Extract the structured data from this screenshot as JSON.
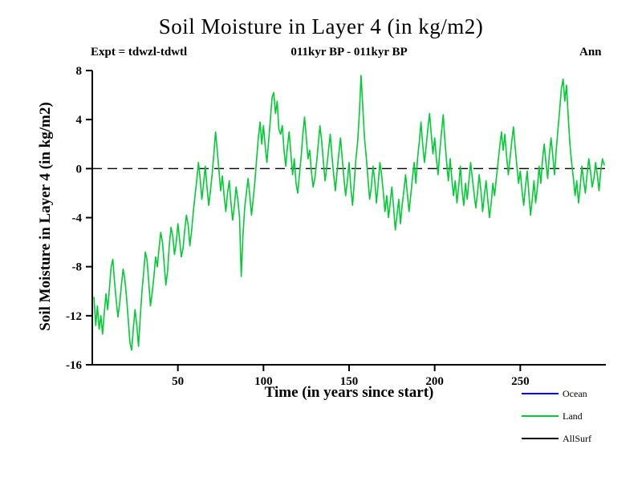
{
  "page": {
    "title": "Soil Moisture in Layer 4 (in kg/m2)",
    "expt_label": "Expt = tdwzl-tdwtl",
    "period_label": "011kyr BP - 011kyr BP",
    "season_label": "Ann",
    "background": "#ffffff"
  },
  "chart_data": {
    "type": "line",
    "title": "Soil Moisture in Layer 4 (in kg/m2)",
    "xlabel": "Time (in years since start)",
    "ylabel": "Soil Moisture in Layer 4 (in kg/m2)",
    "xlim": [
      0,
      300
    ],
    "ylim": [
      -16,
      8
    ],
    "x_ticks": [
      50,
      100,
      150,
      200,
      250
    ],
    "y_ticks": [
      -16,
      -12,
      -8,
      -4,
      0,
      4,
      8
    ],
    "grid": "off",
    "zero_line": {
      "y": 0,
      "style": "dashed",
      "color": "#000000"
    },
    "x_start": 1,
    "x_step": 1,
    "legend_position": "bottom-right",
    "series": [
      {
        "name": "Ocean",
        "color": "#0000cc",
        "values": []
      },
      {
        "name": "Land",
        "color": "#00cc33",
        "values": [
          -10.5,
          -12.8,
          -11.2,
          -13.1,
          -12.0,
          -13.5,
          -11.8,
          -10.2,
          -11.5,
          -9.8,
          -8.0,
          -7.4,
          -9.2,
          -10.8,
          -12.1,
          -11.0,
          -9.5,
          -8.2,
          -9.0,
          -10.5,
          -12.3,
          -14.2,
          -14.8,
          -13.0,
          -11.5,
          -12.8,
          -14.5,
          -12.2,
          -10.0,
          -8.5,
          -6.8,
          -7.5,
          -9.3,
          -11.2,
          -10.1,
          -8.8,
          -7.2,
          -8.0,
          -6.5,
          -5.2,
          -6.0,
          -7.8,
          -9.5,
          -8.3,
          -6.2,
          -4.8,
          -5.5,
          -7.0,
          -6.1,
          -4.5,
          -5.8,
          -7.2,
          -6.5,
          -5.0,
          -3.8,
          -4.6,
          -6.3,
          -5.1,
          -3.5,
          -2.2,
          -1.0,
          0.5,
          -0.8,
          -2.5,
          -1.2,
          0.2,
          -1.5,
          -3.0,
          -1.8,
          -0.5,
          1.2,
          3.0,
          1.5,
          -0.2,
          -1.8,
          -0.6,
          -2.2,
          -3.5,
          -2.0,
          -1.0,
          -2.8,
          -4.2,
          -3.0,
          -1.5,
          -2.5,
          -4.0,
          -8.8,
          -5.5,
          -3.2,
          -2.0,
          -0.8,
          -2.2,
          -3.8,
          -2.5,
          -1.0,
          0.8,
          2.5,
          3.8,
          2.0,
          3.5,
          1.8,
          0.5,
          2.2,
          4.0,
          5.8,
          6.2,
          4.5,
          5.5,
          3.2,
          2.8,
          3.5,
          1.5,
          0.2,
          1.8,
          3.0,
          1.2,
          -0.5,
          0.8,
          -1.2,
          -2.0,
          -0.5,
          1.0,
          2.8,
          4.2,
          2.5,
          0.8,
          1.5,
          -0.3,
          -1.5,
          -0.8,
          0.5,
          2.0,
          3.5,
          2.2,
          0.5,
          -1.0,
          0.2,
          1.5,
          2.8,
          1.0,
          -0.5,
          -1.8,
          -0.2,
          1.2,
          2.5,
          0.8,
          -0.8,
          -2.2,
          -1.0,
          0.5,
          -1.5,
          -3.0,
          -1.2,
          0.8,
          2.2,
          4.5,
          7.6,
          5.0,
          2.5,
          1.0,
          -0.8,
          -2.5,
          -1.5,
          0.2,
          -1.0,
          -2.8,
          -1.2,
          0.5,
          -0.5,
          -2.0,
          -3.5,
          -2.2,
          -4.0,
          -2.8,
          -1.5,
          -3.2,
          -5.0,
          -3.8,
          -2.5,
          -4.5,
          -3.0,
          -1.8,
          -0.5,
          -2.0,
          -3.5,
          -2.2,
          -0.8,
          0.5,
          -1.2,
          0.8,
          2.2,
          3.8,
          2.0,
          0.5,
          1.8,
          3.2,
          4.5,
          2.8,
          1.2,
          2.5,
          0.8,
          -0.5,
          1.5,
          3.0,
          4.4,
          2.2,
          0.5,
          -1.0,
          0.8,
          -0.8,
          -2.2,
          -1.0,
          -2.8,
          -1.5,
          0.2,
          -1.8,
          -3.0,
          -1.2,
          -2.5,
          -1.0,
          0.5,
          -0.8,
          -2.0,
          -3.2,
          -2.0,
          -0.5,
          -1.8,
          -3.5,
          -2.2,
          -1.0,
          -2.5,
          -4.0,
          -2.8,
          -1.2,
          -2.2,
          -0.8,
          0.5,
          1.8,
          3.0,
          1.5,
          2.8,
          1.0,
          -0.5,
          0.8,
          2.2,
          3.4,
          1.8,
          0.2,
          -1.2,
          -0.2,
          -1.8,
          -3.0,
          -1.5,
          -0.2,
          -2.0,
          -3.8,
          -2.5,
          -1.0,
          -2.8,
          -1.5,
          0.2,
          -1.2,
          0.8,
          2.0,
          0.5,
          -0.8,
          1.2,
          2.5,
          1.0,
          -0.5,
          1.5,
          3.2,
          4.8,
          6.5,
          7.3,
          5.5,
          6.8,
          4.2,
          2.0,
          0.5,
          -0.8,
          -2.2,
          -1.0,
          -2.8,
          -1.5,
          0.2,
          -1.0,
          -2.0,
          -0.5,
          0.8,
          -0.2,
          -1.5,
          -0.8,
          0.5,
          -0.5,
          -1.8,
          -0.2,
          0.8,
          0.3
        ]
      },
      {
        "name": "AllSurf",
        "color": "#000000",
        "values": []
      }
    ]
  }
}
